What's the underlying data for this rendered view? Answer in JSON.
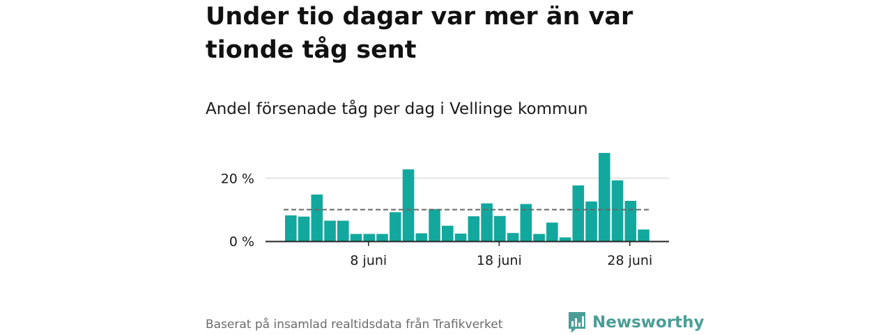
{
  "title": "Under tio dagar var mer än var tionde tåg sent",
  "subtitle": "Andel försenade tåg per dag i Vellinge kommun",
  "footer": "Baserat på insamlad realtidsdata från Trafikverket",
  "brand": {
    "name": "Newsworthy",
    "icon": "bar-chart-speech-bubble-icon",
    "color": "#4a9e96"
  },
  "colors": {
    "bar": "#13a89e",
    "reference_line": "#666666",
    "grid": "#dddddd",
    "axis": "#222222"
  },
  "chart_data": {
    "type": "bar",
    "x": [
      "2024-06-02",
      "2024-06-03",
      "2024-06-04",
      "2024-06-05",
      "2024-06-06",
      "2024-06-07",
      "2024-06-08",
      "2024-06-09",
      "2024-06-10",
      "2024-06-11",
      "2024-06-12",
      "2024-06-13",
      "2024-06-14",
      "2024-06-15",
      "2024-06-16",
      "2024-06-17",
      "2024-06-18",
      "2024-06-19",
      "2024-06-20",
      "2024-06-21",
      "2024-06-22",
      "2024-06-23",
      "2024-06-24",
      "2024-06-25",
      "2024-06-26",
      "2024-06-27",
      "2024-06-28",
      "2024-06-29"
    ],
    "values": [
      8.2,
      7.8,
      14.8,
      6.5,
      6.5,
      2.3,
      2.3,
      2.3,
      9.2,
      22.8,
      2.5,
      10.2,
      4.9,
      2.4,
      7.9,
      12.0,
      8.0,
      2.6,
      11.8,
      2.3,
      5.9,
      1.2,
      17.7,
      12.6,
      28.0,
      19.3,
      12.8,
      3.7
    ],
    "reference_line": {
      "value": 10
    },
    "ylim": [
      0,
      30
    ],
    "yticks": [
      0,
      20
    ],
    "ytick_labels": [
      "0 %",
      "20 %"
    ],
    "xticks": [
      {
        "x": "2024-06-08",
        "label": "8 juni"
      },
      {
        "x": "2024-06-18",
        "label": "18 juni"
      },
      {
        "x": "2024-06-28",
        "label": "28 juni"
      }
    ],
    "xlabel": "",
    "ylabel": "",
    "grid": true,
    "legend": "none"
  }
}
